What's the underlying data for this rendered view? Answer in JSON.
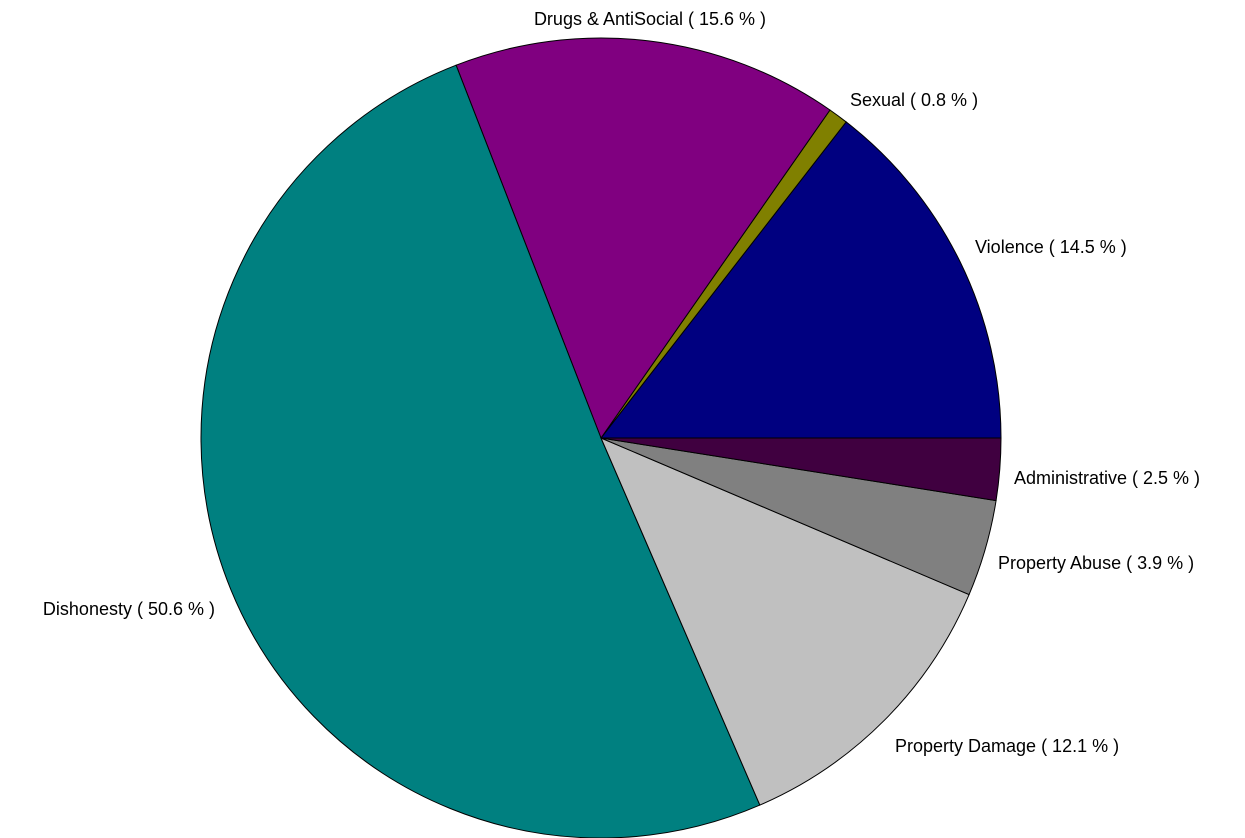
{
  "chart_data": {
    "type": "pie",
    "title": "",
    "legend": "none",
    "start_angle_deg": 0,
    "direction": "counterclockwise",
    "slices": [
      {
        "label": "Violence ( 14.5 % )",
        "category": "Violence",
        "value": 14.5,
        "color": "#000080"
      },
      {
        "label": "Sexual ( 0.8 % )",
        "category": "Sexual",
        "value": 0.8,
        "color": "#808000"
      },
      {
        "label": "Drugs & AntiSocial ( 15.6 % )",
        "category": "Drugs & AntiSocial",
        "value": 15.6,
        "color": "#800080"
      },
      {
        "label": "Dishonesty ( 50.6 % )",
        "category": "Dishonesty",
        "value": 50.6,
        "color": "#008080"
      },
      {
        "label": "Property Damage ( 12.1 % )",
        "category": "Property Damage",
        "value": 12.1,
        "color": "#C0C0C0"
      },
      {
        "label": "Property Abuse ( 3.9 % )",
        "category": "Property Abuse",
        "value": 3.9,
        "color": "#808080"
      },
      {
        "label": "Administrative ( 2.5 % )",
        "category": "Administrative",
        "value": 2.5,
        "color": "#400040"
      }
    ]
  }
}
